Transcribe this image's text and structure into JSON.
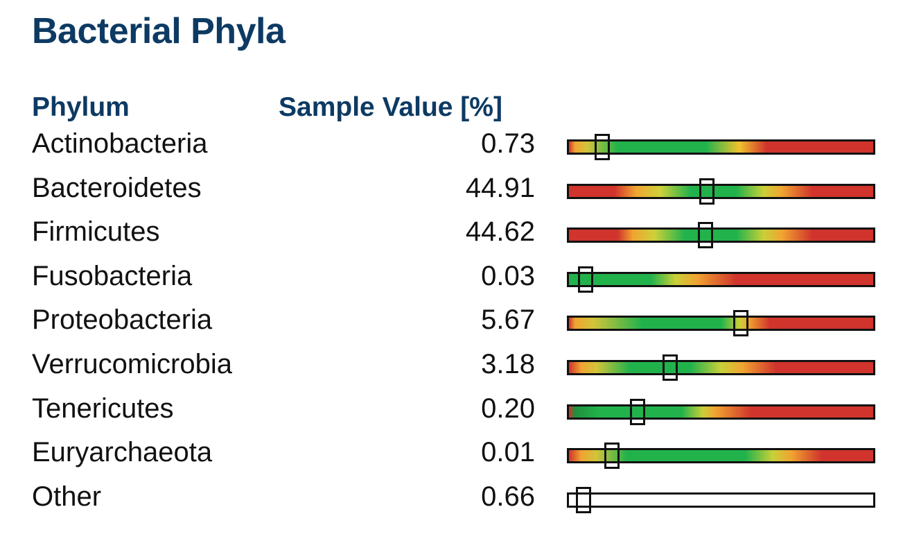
{
  "title": "Bacterial Phyla",
  "headers": {
    "phylum": "Phylum",
    "value": "Sample Value [%]"
  },
  "colors": {
    "heading": "#0d3a63",
    "red": "#d0342c",
    "orange": "#f0a431",
    "yellow": "#e8c52e",
    "green": "#22b24c"
  },
  "rows": [
    {
      "phylum": "Actinobacteria",
      "value": "0.73",
      "gauge_position": 0.115,
      "gauge_colors": [
        "#d0342c 0%",
        "#f0a431 2%",
        "#d2c43a 6%",
        "#22b24c 16%",
        "#22b24c 45%",
        "#f0c22e 56%",
        "#d0342c 65%",
        "#d0342c 100%"
      ]
    },
    {
      "phylum": "Bacteroidetes",
      "value": "44.91",
      "gauge_position": 0.455,
      "gauge_colors": [
        "#d0342c 0%",
        "#d0342c 15%",
        "#f0a431 22%",
        "#cfd03a 30%",
        "#22b24c 40%",
        "#22b24c 55%",
        "#c9d038 64%",
        "#f0a431 70%",
        "#d0342c 80%",
        "#d0342c 100%"
      ]
    },
    {
      "phylum": "Firmicutes",
      "value": "44.62",
      "gauge_position": 0.45,
      "gauge_colors": [
        "#d0342c 0%",
        "#d0342c 16%",
        "#f0a431 21%",
        "#cfd03a 28%",
        "#22b24c 38%",
        "#22b24c 55%",
        "#c9d038 64%",
        "#f0a431 70%",
        "#d0342c 80%",
        "#d0342c 100%"
      ]
    },
    {
      "phylum": "Fusobacteria",
      "value": "0.03",
      "gauge_position": 0.06,
      "gauge_colors": [
        "#22b24c 0%",
        "#22b24c 27%",
        "#c9d038 35%",
        "#f0a431 42%",
        "#d0342c 55%",
        "#d0342c 100%"
      ]
    },
    {
      "phylum": "Proteobacteria",
      "value": "5.67",
      "gauge_position": 0.565,
      "gauge_colors": [
        "#d0342c 0%",
        "#f0a431 2%",
        "#d2c43a 8%",
        "#22b24c 24%",
        "#22b24c 50%",
        "#c9d038 56%",
        "#f0a431 59%",
        "#d0342c 66%",
        "#d0342c 100%"
      ]
    },
    {
      "phylum": "Verrucomicrobia",
      "value": "3.18",
      "gauge_position": 0.335,
      "gauge_colors": [
        "#d0342c 0%",
        "#f0a431 4%",
        "#d2c43a 9%",
        "#22b24c 20%",
        "#22b24c 40%",
        "#c9d038 50%",
        "#f0a431 57%",
        "#d0342c 68%",
        "#d0342c 100%"
      ]
    },
    {
      "phylum": "Tenericutes",
      "value": "0.20",
      "gauge_position": 0.23,
      "gauge_colors": [
        "#d0342c 0%",
        "#1f8f3d 2%",
        "#22b24c 10%",
        "#22b24c 37%",
        "#c9d038 44%",
        "#f0a431 48%",
        "#d0342c 60%",
        "#d0342c 100%"
      ]
    },
    {
      "phylum": "Euryarchaeota",
      "value": "0.01",
      "gauge_position": 0.145,
      "gauge_colors": [
        "#d0342c 0%",
        "#f0a431 4%",
        "#d2c43a 9%",
        "#22b24c 19%",
        "#22b24c 58%",
        "#c9d038 67%",
        "#f0a431 73%",
        "#d0342c 83%",
        "#d0342c 100%"
      ]
    },
    {
      "phylum": "Other",
      "value": "0.66",
      "gauge_position": 0.055,
      "gauge_colors": [
        "#ffffff 0%",
        "#ffffff 100%"
      ]
    }
  ]
}
